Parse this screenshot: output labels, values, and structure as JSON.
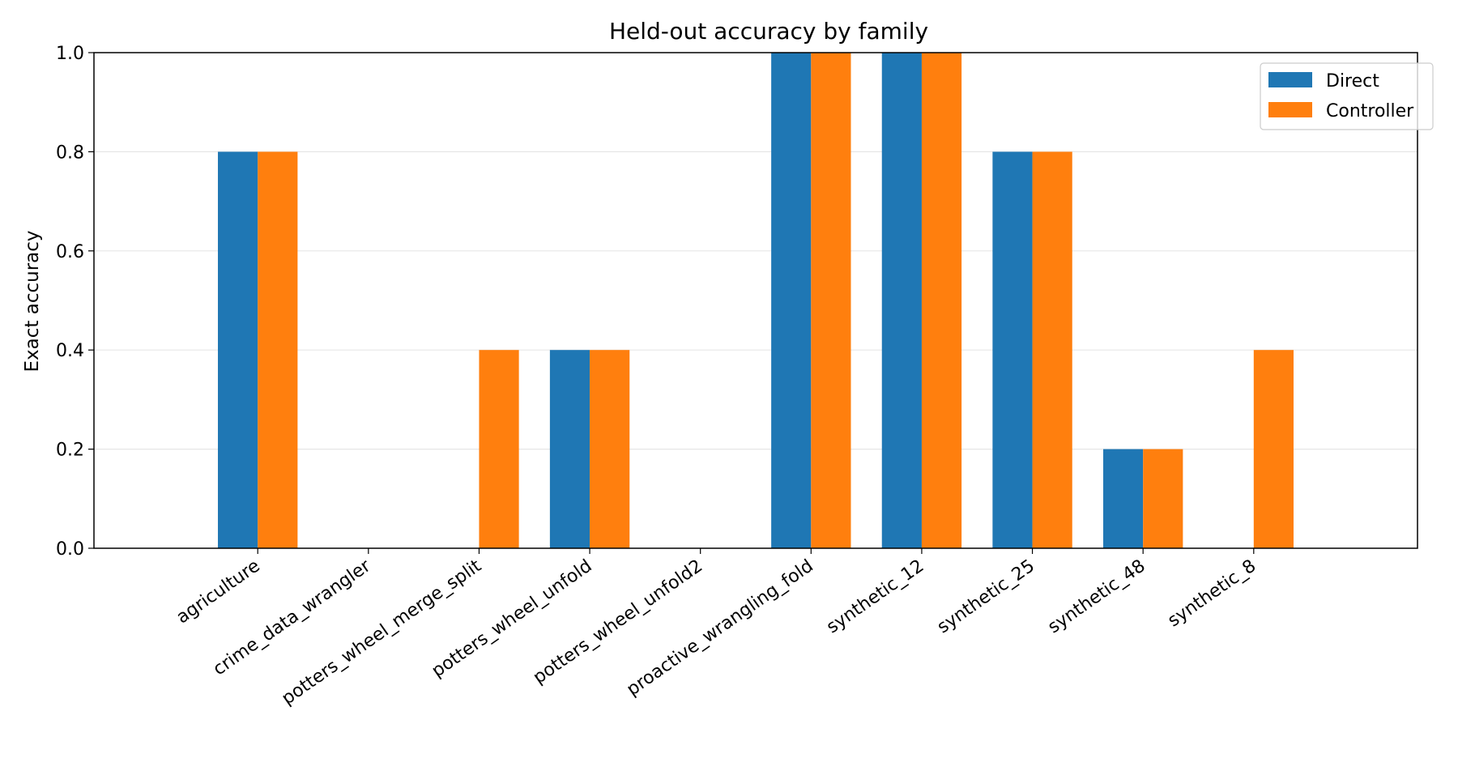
{
  "chart_data": {
    "type": "bar",
    "title": "Held-out accuracy by family",
    "xlabel": "",
    "ylabel": "Exact accuracy",
    "ylim": [
      0,
      1.0
    ],
    "yticks": [
      "0.0",
      "0.2",
      "0.4",
      "0.6",
      "0.8",
      "1.0"
    ],
    "grid": "horizontal",
    "legend_position": "top-right",
    "categories": [
      "agriculture",
      "crime_data_wrangler",
      "potters_wheel_merge_split",
      "potters_wheel_unfold",
      "potters_wheel_unfold2",
      "proactive_wrangling_fold",
      "synthetic_12",
      "synthetic_25",
      "synthetic_48",
      "synthetic_8"
    ],
    "series": [
      {
        "name": "Direct",
        "color": "#1f77b4",
        "values": [
          0.8,
          0.0,
          0.0,
          0.4,
          0.0,
          1.0,
          1.0,
          0.8,
          0.2,
          0.0
        ]
      },
      {
        "name": "Controller",
        "color": "#ff7f0e",
        "values": [
          0.8,
          0.0,
          0.4,
          0.4,
          0.0,
          1.0,
          1.0,
          0.8,
          0.2,
          0.4
        ]
      }
    ]
  }
}
